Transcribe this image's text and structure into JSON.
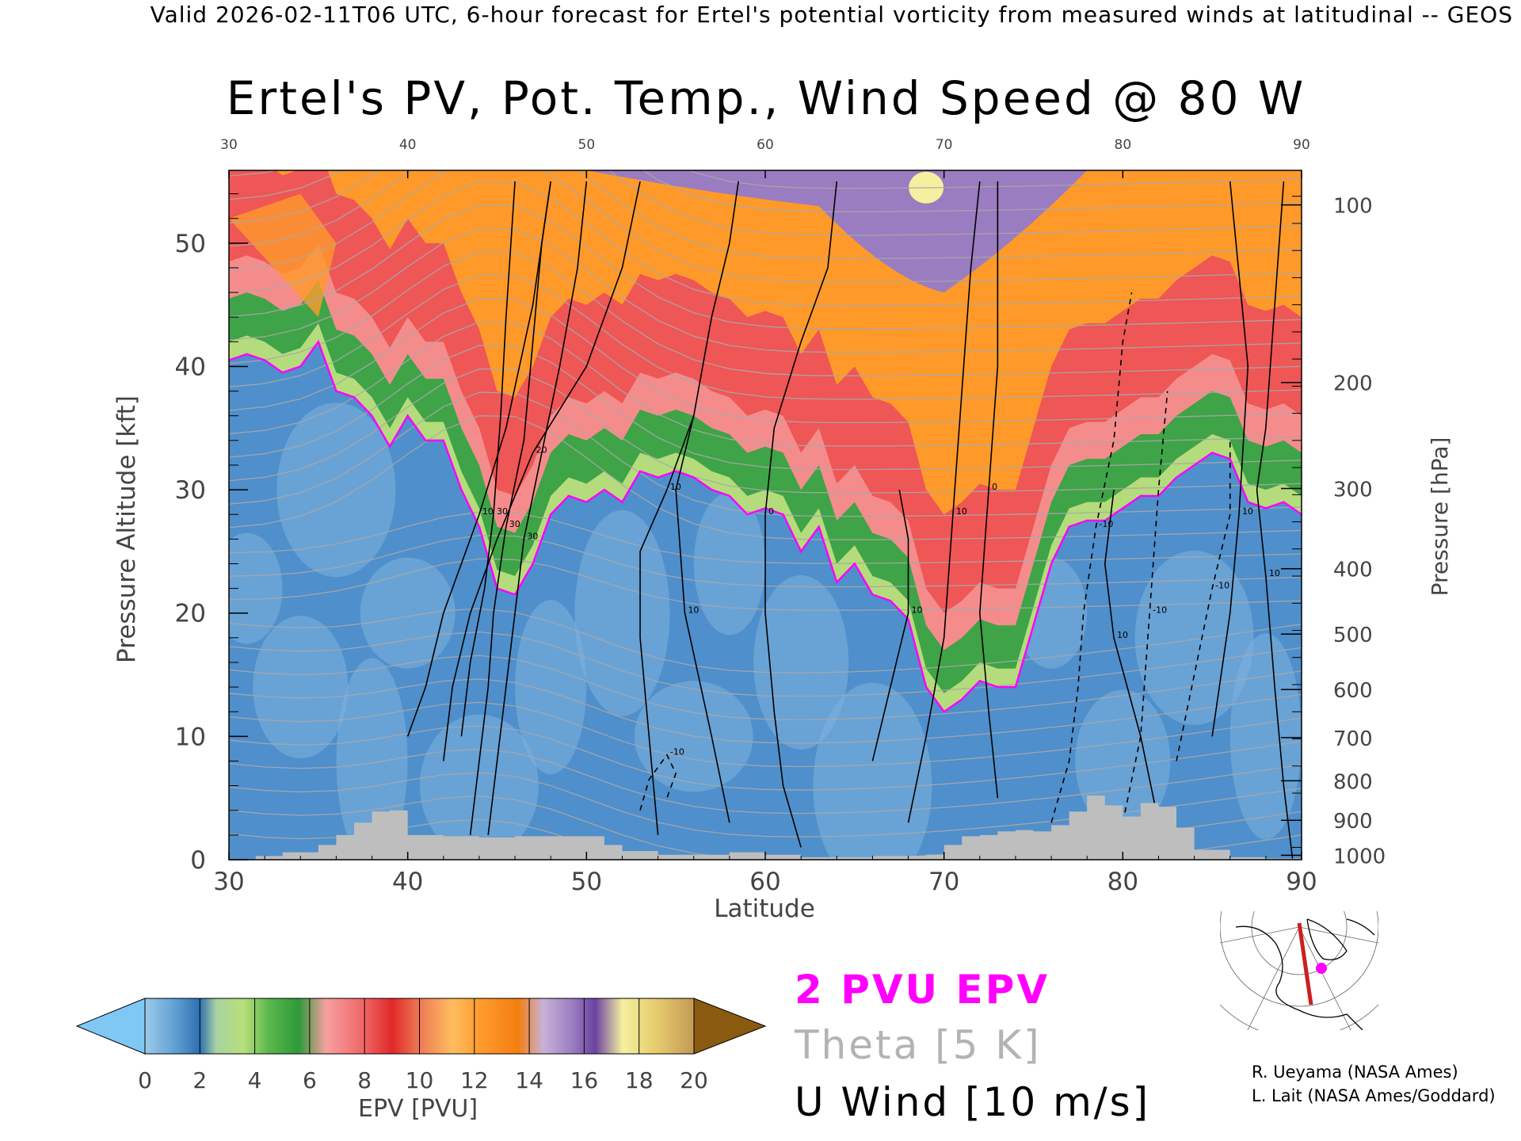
{
  "header": "Valid 2026-02-11T06 UTC, 6-hour forecast for Ertel's potential vorticity from measured winds at latitudinal -- GEOS",
  "chart_data": {
    "type": "heatmap",
    "title": "Ertel's PV, Pot. Temp., Wind Speed @ 80 W",
    "xlabel": "Latitude",
    "ylabel": "Pressure Altitude [kft]",
    "y2label": "Pressure [hPa]",
    "xlim": [
      30,
      90
    ],
    "ylim": [
      0,
      55.9
    ],
    "x_ticks": [
      "30",
      "40",
      "50",
      "60",
      "70",
      "80",
      "90"
    ],
    "top_ticks": [
      "30",
      "40",
      "50",
      "60",
      "70",
      "80",
      "90"
    ],
    "y_ticks": [
      "0",
      "10",
      "20",
      "30",
      "40",
      "50"
    ],
    "y_tick_values": [
      0,
      10,
      20,
      30,
      40,
      50
    ],
    "pressure_ticks": [
      {
        "label": "1000",
        "kft": 0.36
      },
      {
        "label": "900",
        "kft": 3.2
      },
      {
        "label": "800",
        "kft": 6.4
      },
      {
        "label": "700",
        "kft": 9.9
      },
      {
        "label": "600",
        "kft": 13.8
      },
      {
        "label": "500",
        "kft": 18.3
      },
      {
        "label": "400",
        "kft": 23.6
      },
      {
        "label": "300",
        "kft": 30.1
      },
      {
        "label": "200",
        "kft": 38.7
      },
      {
        "label": "100",
        "kft": 53.1
      }
    ],
    "tropopause_2pvu_kft": [
      [
        30,
        40.5
      ],
      [
        31,
        41
      ],
      [
        32,
        40.5
      ],
      [
        33,
        39.5
      ],
      [
        34,
        40
      ],
      [
        35,
        42
      ],
      [
        36,
        38
      ],
      [
        37,
        37.5
      ],
      [
        38,
        36
      ],
      [
        39,
        33.5
      ],
      [
        40,
        36
      ],
      [
        41,
        34
      ],
      [
        42,
        34
      ],
      [
        43,
        30
      ],
      [
        44,
        27
      ],
      [
        45,
        22
      ],
      [
        46,
        21.5
      ],
      [
        47,
        24
      ],
      [
        48,
        28
      ],
      [
        49,
        29.5
      ],
      [
        50,
        29
      ],
      [
        51,
        30
      ],
      [
        52,
        29
      ],
      [
        53,
        31.5
      ],
      [
        54,
        31
      ],
      [
        55,
        31.5
      ],
      [
        56,
        31
      ],
      [
        57,
        30
      ],
      [
        58,
        29.5
      ],
      [
        59,
        28
      ],
      [
        60,
        28.5
      ],
      [
        61,
        28
      ],
      [
        62,
        25
      ],
      [
        63,
        27
      ],
      [
        64,
        22.5
      ],
      [
        65,
        24
      ],
      [
        66,
        21.5
      ],
      [
        67,
        21
      ],
      [
        68,
        19.5
      ],
      [
        69,
        14
      ],
      [
        70,
        12
      ],
      [
        71,
        13
      ],
      [
        72,
        14.5
      ],
      [
        73,
        14
      ],
      [
        74,
        14
      ],
      [
        75,
        19
      ],
      [
        76,
        24
      ],
      [
        77,
        27
      ],
      [
        78,
        27.5
      ],
      [
        79,
        27.5
      ],
      [
        80,
        28.5
      ],
      [
        81,
        29.5
      ],
      [
        82,
        29.5
      ],
      [
        83,
        31
      ],
      [
        84,
        32
      ],
      [
        85,
        33
      ],
      [
        86,
        32.5
      ],
      [
        87,
        29
      ],
      [
        88,
        28.5
      ],
      [
        89,
        29
      ],
      [
        90,
        28
      ]
    ],
    "terrain_kft": [
      [
        30,
        0
      ],
      [
        31.5,
        0.3
      ],
      [
        33,
        0.6
      ],
      [
        35,
        1.2
      ],
      [
        36,
        2
      ],
      [
        37,
        3
      ],
      [
        38,
        3.9
      ],
      [
        39,
        4
      ],
      [
        40,
        2
      ],
      [
        42,
        1.9
      ],
      [
        44,
        1.8
      ],
      [
        46,
        1.9
      ],
      [
        48,
        1.9
      ],
      [
        50,
        1.9
      ],
      [
        51,
        1.2
      ],
      [
        52,
        0.7
      ],
      [
        54,
        0.4
      ],
      [
        56,
        0.4
      ],
      [
        58,
        0.6
      ],
      [
        60,
        0.4
      ],
      [
        62,
        0.2
      ],
      [
        64,
        0.2
      ],
      [
        66,
        0.3
      ],
      [
        68,
        0.3
      ],
      [
        69,
        0.4
      ],
      [
        70,
        1.2
      ],
      [
        71,
        1.9
      ],
      [
        72,
        2
      ],
      [
        73,
        2.3
      ],
      [
        74,
        2.4
      ],
      [
        75,
        2.3
      ],
      [
        76,
        2.8
      ],
      [
        77,
        3.9
      ],
      [
        78,
        5.2
      ],
      [
        79,
        4.4
      ],
      [
        80,
        3.5
      ],
      [
        81,
        4.6
      ],
      [
        82,
        4.3
      ],
      [
        83,
        2.6
      ],
      [
        84,
        0.8
      ],
      [
        86,
        0.2
      ],
      [
        88,
        0.1
      ],
      [
        90,
        0
      ]
    ],
    "wind_contours": [
      {
        "label": "30",
        "points": [
          [
            44.5,
            2
          ],
          [
            45,
            8
          ],
          [
            45.5,
            14
          ],
          [
            46,
            20
          ],
          [
            46.5,
            26
          ],
          [
            47.5,
            33
          ],
          [
            48.5,
            40
          ],
          [
            49.5,
            48
          ],
          [
            50,
            55
          ]
        ]
      },
      {
        "label": "30",
        "points": [
          [
            43.5,
            2
          ],
          [
            44,
            8
          ],
          [
            44.5,
            14
          ],
          [
            44.8,
            20
          ],
          [
            45.5,
            27
          ],
          [
            46.5,
            34
          ],
          [
            47,
            42
          ],
          [
            47.5,
            50
          ],
          [
            48,
            55
          ]
        ]
      },
      {
        "label": "30",
        "points": [
          [
            43,
            10
          ],
          [
            43.5,
            16
          ],
          [
            44.3,
            22
          ],
          [
            44.8,
            28
          ],
          [
            45.2,
            36
          ],
          [
            45.5,
            44
          ],
          [
            46,
            55
          ]
        ]
      },
      {
        "label": "20",
        "points": [
          [
            42,
            8
          ],
          [
            42.5,
            14
          ],
          [
            43.5,
            20
          ],
          [
            45,
            26
          ],
          [
            47,
            33
          ],
          [
            50,
            40
          ],
          [
            52,
            48
          ],
          [
            53,
            55
          ]
        ]
      },
      {
        "label": "10",
        "points": [
          [
            40,
            10
          ],
          [
            41,
            14
          ],
          [
            42,
            20
          ],
          [
            44,
            28
          ],
          [
            45.5,
            35
          ],
          [
            47,
            45
          ],
          [
            48,
            55
          ]
        ]
      },
      {
        "label": "10",
        "points": [
          [
            54,
            2
          ],
          [
            53.5,
            10
          ],
          [
            53,
            18
          ],
          [
            53,
            25
          ],
          [
            54.5,
            30
          ],
          [
            56,
            36
          ],
          [
            57,
            44
          ],
          [
            58,
            50
          ],
          [
            58.5,
            55
          ]
        ]
      },
      {
        "label": "10",
        "points": [
          [
            58,
            3
          ],
          [
            57,
            10
          ],
          [
            55.5,
            20
          ],
          [
            55,
            30
          ],
          [
            56,
            36
          ]
        ]
      },
      {
        "label": "0",
        "points": [
          [
            62,
            1
          ],
          [
            61,
            6
          ],
          [
            60.5,
            12
          ],
          [
            60,
            20
          ],
          [
            60,
            28
          ],
          [
            60.5,
            35
          ],
          [
            62,
            42
          ],
          [
            63.5,
            48
          ],
          [
            64,
            55
          ]
        ]
      },
      {
        "label": "10",
        "points": [
          [
            68,
            3
          ],
          [
            69,
            10
          ],
          [
            70,
            18
          ],
          [
            70.5,
            28
          ],
          [
            71,
            38
          ],
          [
            71.5,
            48
          ],
          [
            72,
            55
          ]
        ]
      },
      {
        "label": "0",
        "points": [
          [
            73,
            5
          ],
          [
            72.5,
            12
          ],
          [
            72,
            20
          ],
          [
            72.5,
            30
          ],
          [
            73,
            40
          ],
          [
            73,
            48
          ],
          [
            73,
            55
          ]
        ]
      },
      {
        "label": "10",
        "points": [
          [
            66,
            8
          ],
          [
            67,
            14
          ],
          [
            68,
            20
          ],
          [
            68,
            26
          ],
          [
            67.5,
            30
          ]
        ]
      },
      {
        "label": "10",
        "points": [
          [
            82,
            3
          ],
          [
            81,
            10
          ],
          [
            79.5,
            18
          ],
          [
            79,
            24
          ],
          [
            79.5,
            30
          ]
        ]
      },
      {
        "label": "10",
        "points": [
          [
            85,
            10
          ],
          [
            86,
            20
          ],
          [
            86.5,
            28
          ],
          [
            87,
            40
          ],
          [
            86,
            55
          ]
        ]
      },
      {
        "label": "10",
        "points": [
          [
            89.5,
            0
          ],
          [
            89,
            6
          ],
          [
            88.5,
            14
          ],
          [
            88,
            23
          ],
          [
            87.5,
            30
          ],
          [
            88,
            35
          ],
          [
            89,
            55
          ]
        ]
      },
      {
        "label": "-10",
        "dashed": true,
        "points": [
          [
            76,
            3
          ],
          [
            77,
            8
          ],
          [
            77.5,
            14
          ],
          [
            77.8,
            20
          ],
          [
            78.5,
            27
          ],
          [
            79.5,
            34
          ],
          [
            80,
            42
          ],
          [
            80.5,
            46
          ]
        ]
      },
      {
        "label": "-10",
        "dashed": true,
        "points": [
          [
            80,
            3
          ],
          [
            81,
            10
          ],
          [
            81.5,
            20
          ],
          [
            82,
            30
          ],
          [
            82.5,
            38
          ]
        ]
      },
      {
        "label": "-10",
        "dashed": true,
        "points": [
          [
            83,
            8
          ],
          [
            84,
            15
          ],
          [
            85,
            22
          ],
          [
            86,
            28
          ],
          [
            86,
            34
          ]
        ]
      },
      {
        "label": "-10",
        "dashed": true,
        "points": [
          [
            53,
            4
          ],
          [
            53.5,
            6.5
          ],
          [
            54.5,
            8.5
          ],
          [
            55,
            7
          ],
          [
            54.5,
            5
          ]
        ]
      }
    ],
    "colorbar": {
      "label": "EPV [PVU]",
      "tick_labels": [
        "0",
        "2",
        "4",
        "6",
        "8",
        "10",
        "12",
        "14",
        "16",
        "18",
        "20"
      ],
      "under_color": "#7fc8f4",
      "over_color": "#8a5a10",
      "stops": [
        {
          "pvu": 0,
          "color": "#9ccbe9"
        },
        {
          "pvu": 1.2,
          "color": "#5b9bd1"
        },
        {
          "pvu": 2,
          "color": "#2e6fb0"
        },
        {
          "pvu": 2.6,
          "color": "#a9d3a2"
        },
        {
          "pvu": 3.6,
          "color": "#b7df7a"
        },
        {
          "pvu": 4.5,
          "color": "#5cb84c"
        },
        {
          "pvu": 5.6,
          "color": "#2e9a3a"
        },
        {
          "pvu": 6.6,
          "color": "#f7a0a0"
        },
        {
          "pvu": 8,
          "color": "#ef6565"
        },
        {
          "pvu": 9,
          "color": "#e02828"
        },
        {
          "pvu": 10,
          "color": "#ee7a55"
        },
        {
          "pvu": 11.2,
          "color": "#ffbd5f"
        },
        {
          "pvu": 12.2,
          "color": "#ff9b2e"
        },
        {
          "pvu": 13.6,
          "color": "#f47e10"
        },
        {
          "pvu": 14.5,
          "color": "#c8b2d8"
        },
        {
          "pvu": 15.6,
          "color": "#9a7cc0"
        },
        {
          "pvu": 16.4,
          "color": "#6a42a0"
        },
        {
          "pvu": 17.4,
          "color": "#f5f0a0"
        },
        {
          "pvu": 18.6,
          "color": "#e6cc6e"
        },
        {
          "pvu": 20,
          "color": "#c49a55"
        }
      ]
    },
    "layer_colors": {
      "trop_low": "#7fb3de",
      "trop_mid": "#4f8fcb",
      "green_band": "#3fa347",
      "light_green": "#b5dc7c",
      "red_band": "#ef5656",
      "pink_band": "#f58c8c",
      "orange_band": "#ff9a2a",
      "purple_band": "#9a7cc0",
      "yellow_band": "#f5f0a0",
      "terrain": "#bebebe",
      "epv_line": "#ff00ff",
      "theta_line": "#a8a8a8",
      "wind_line": "#000000"
    }
  },
  "legend": {
    "pvu": "2 PVU EPV",
    "theta": "Theta [5 K]",
    "wind": "U Wind [10 m/s]"
  },
  "credits": [
    "R. Ueyama (NASA Ames)",
    "L. Lait (NASA Ames/Goddard)"
  ],
  "inset_map": {
    "marker_color": "#ff00ff",
    "track_color": "#cc2020"
  }
}
